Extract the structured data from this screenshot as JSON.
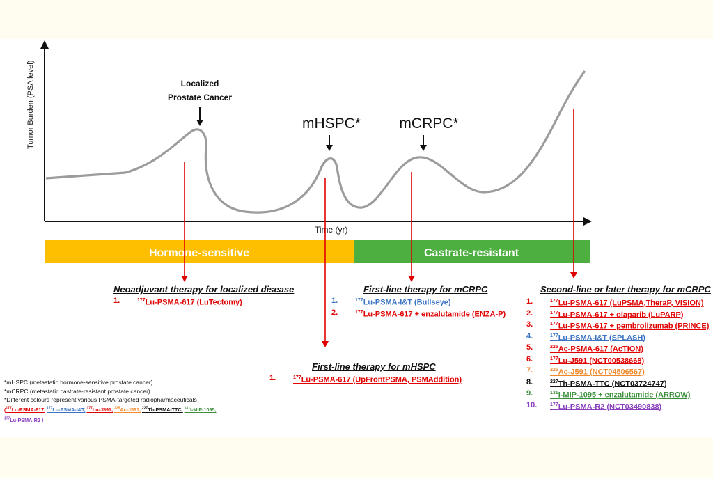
{
  "diagram": {
    "y_axis_label": "Tumor Burden (PSA level)",
    "x_axis_label": "Time (yr)",
    "stage_labels": {
      "localized": [
        "Localized",
        "Prostate Cancer"
      ],
      "mhspc": "mHSPC*",
      "mcrpc": "mCRPC*"
    },
    "phases": {
      "hormone_sensitive": "Hormone-sensitive",
      "castrate_resistant": "Castrate-resistant"
    },
    "colors": {
      "hormone_sensitive": "#fdbf00",
      "castrate_resistant": "#4caf3f",
      "arrow": "#e00000",
      "curve": "#999999"
    }
  },
  "therapy_groups": {
    "neoadjuvant": {
      "heading": "Neoadjuvant therapy for localized disease",
      "items": [
        {
          "num": "1.",
          "sup": "177",
          "text": "Lu-PSMA-617 (LuTectomy)",
          "color": "#e00000"
        }
      ]
    },
    "first_line_mcrpc": {
      "heading": "First-line therapy for mCRPC",
      "items": [
        {
          "num": "1.",
          "sup": "177",
          "text": "Lu-PSMA-I&T (Bullseye)",
          "color": "#3b73c4"
        },
        {
          "num": "2.",
          "sup": "177",
          "text": "Lu-PSMA-617 + enzalutamide (ENZA-P)",
          "color": "#e00000"
        }
      ]
    },
    "first_line_mhspc": {
      "heading": "First-line therapy for mHSPC",
      "items": [
        {
          "num": "1.",
          "sup": "177",
          "text": "Lu-PSMA-617 (UpFrontPSMA, PSMAddition)",
          "color": "#e00000"
        }
      ]
    },
    "second_line_mcrpc": {
      "heading": "Second-line or later therapy for mCRPC",
      "items": [
        {
          "num": "1.",
          "sup": "177",
          "text": "Lu-PSMA-617 (LuPSMA,TheraP, VISION)",
          "color": "#e00000"
        },
        {
          "num": "2.",
          "sup": "177",
          "text": "Lu-PSMA-617 + olaparib (LuPARP)",
          "color": "#e00000"
        },
        {
          "num": "3.",
          "sup": "177",
          "text": "Lu-PSMA-617 + pembrolizumab (PRINCE)",
          "color": "#e00000"
        },
        {
          "num": "4.",
          "sup": "177",
          "text": "Lu-PSMA-I&T (SPLASH)",
          "color": "#3b73c4"
        },
        {
          "num": "5.",
          "sup": "225",
          "text": "Ac-PSMA-617 (AcTION)",
          "color": "#e00000"
        },
        {
          "num": "6.",
          "sup": "177",
          "text": "Lu-J591 (NCT00538668)",
          "color": "#e00000"
        },
        {
          "num": "7.",
          "sup": "225",
          "text": "Ac-J591 (NCT04506567)",
          "color": "#f08a2c"
        },
        {
          "num": "8.",
          "sup": "227",
          "text": "Th-PSMA-TTC (NCT03724747)",
          "color": "#111111"
        },
        {
          "num": "9.",
          "sup": "131",
          "text": "I-MIP-1095 + enzalutamide (ARROW)",
          "color": "#3d8f3d"
        },
        {
          "num": "10.",
          "sup": "177",
          "text": "Lu-PSMA-R2 (NCT03490838)",
          "color": "#8a3fbf"
        }
      ]
    }
  },
  "footnotes": {
    "lines": [
      "*mHSPC (metastatic hormone-sensitive prostate cancer)",
      "*mCRPC (metastatic castrate-resistant prostate cancer)",
      "*Different colours represent various PSMA-targeted radiopharmaceuticals"
    ],
    "key": [
      {
        "sup": "177",
        "text": "Lu-PSMA-617,",
        "color": "#e00000"
      },
      {
        "sup": "177",
        "text": "Lu-PSMA-I&T,",
        "color": "#3b73c4"
      },
      {
        "sup": "177",
        "text": "Lu-J591,",
        "color": "#e00000"
      },
      {
        "sup": "225",
        "text": "Ac-J591,",
        "color": "#f08a2c"
      },
      {
        "sup": "227",
        "text": "Th-PSMA-TTC,",
        "color": "#111111"
      },
      {
        "sup": "131",
        "text": "I-MIP-1095,",
        "color": "#3d8f3d"
      },
      {
        "sup": "177",
        "text": "Lu-PSMA-R2",
        "color": "#8a3fbf"
      }
    ]
  }
}
